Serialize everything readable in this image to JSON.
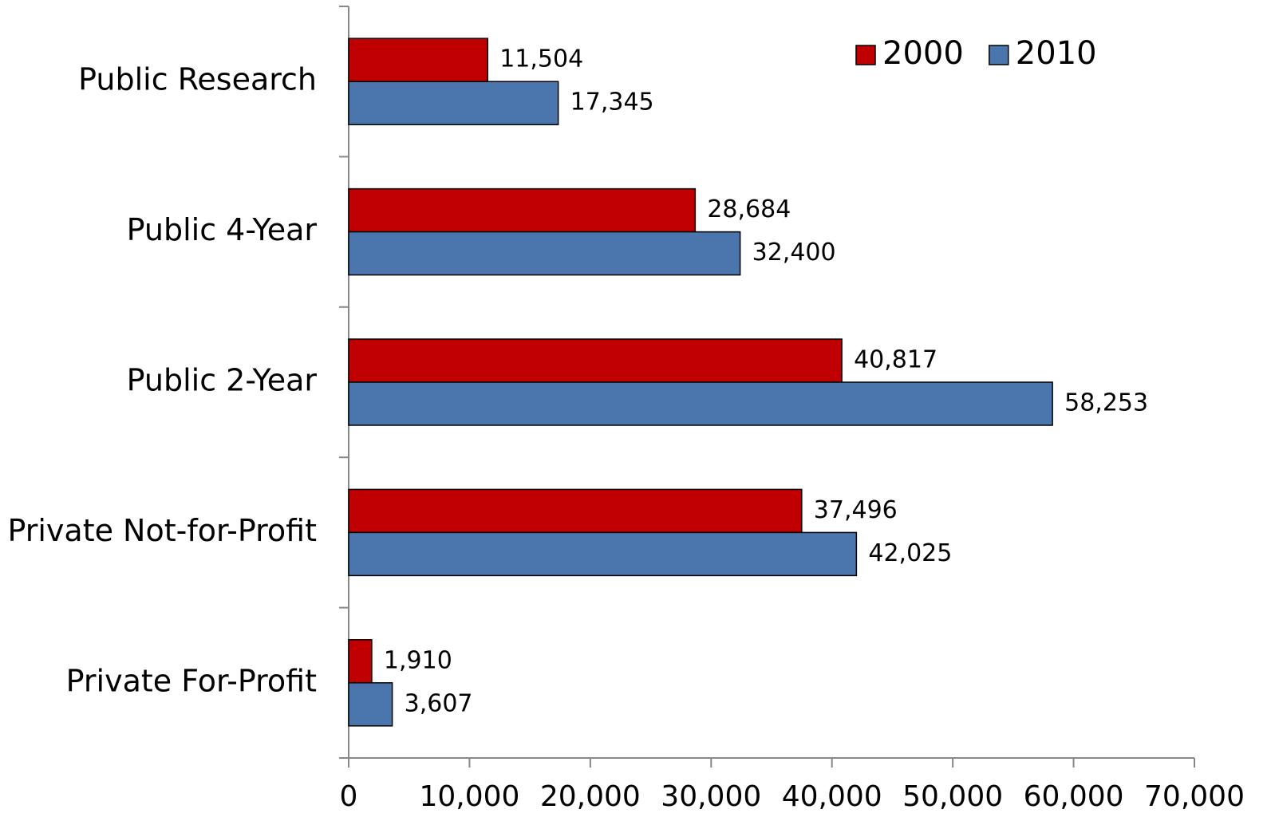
{
  "chart_data": {
    "type": "hbar",
    "categories": [
      "Public Research",
      "Public 4-Year",
      "Public 2-Year",
      "Private Not-for-Profit",
      "Private For-Profit"
    ],
    "series": [
      {
        "name": "2000",
        "color": "#c00000",
        "values": [
          11504,
          28684,
          40817,
          37496,
          1910
        ],
        "value_labels": [
          "11,504",
          "28,684",
          "40,817",
          "37,496",
          "1,910"
        ]
      },
      {
        "name": "2010",
        "color": "#4a76ad",
        "values": [
          17345,
          32400,
          58253,
          42025,
          3607
        ],
        "value_labels": [
          "17,345",
          "32,400",
          "58,253",
          "42,025",
          "3,607"
        ]
      }
    ],
    "xlim": [
      0,
      70000
    ],
    "xticks": [
      0,
      {
        "value": 10000,
        "label": "10,000"
      },
      {
        "value": 20000,
        "label": "20,000"
      },
      {
        "value": 30000,
        "label": "30,000"
      },
      {
        "value": 40000,
        "label": "40,000"
      },
      {
        "value": 50000,
        "label": "50,000"
      },
      {
        "value": 60000,
        "label": "60,000"
      },
      {
        "value": 70000,
        "label": "70,000"
      }
    ],
    "legend": "top-right",
    "grid": false
  }
}
